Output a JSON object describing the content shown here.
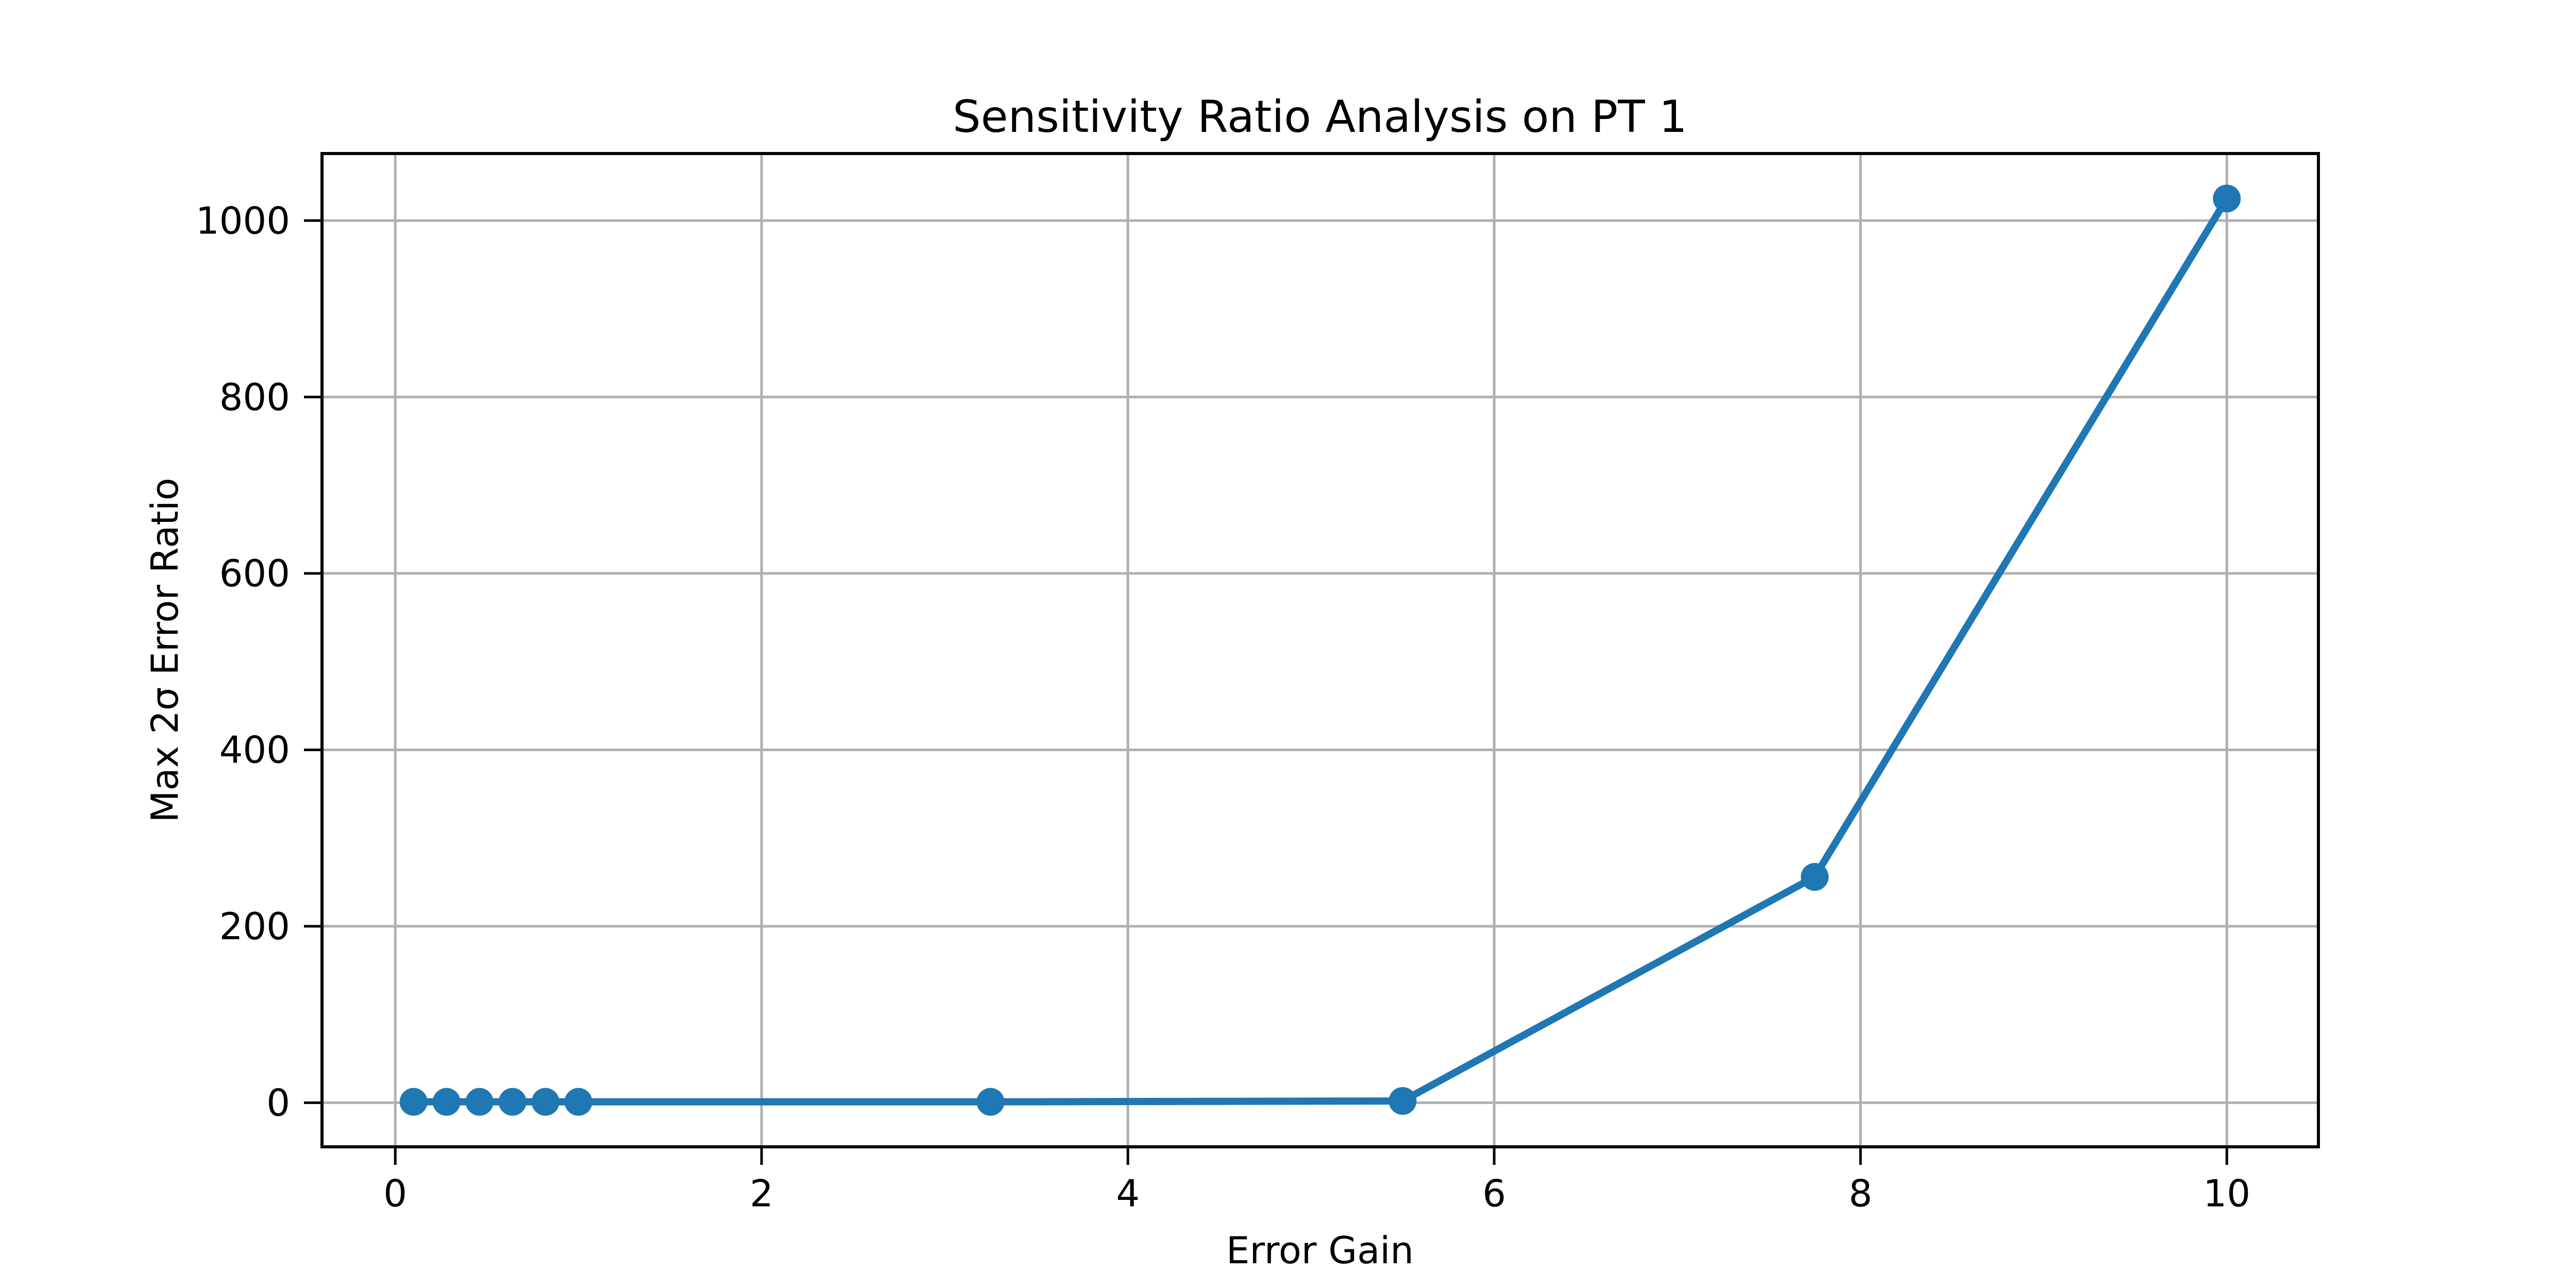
{
  "chart_data": {
    "type": "line",
    "title": "Sensitivity Ratio Analysis on PT 1",
    "xlabel": "Error Gain",
    "ylabel": "Max 2σ Error Ratio",
    "x": [
      0.1,
      0.28,
      0.46,
      0.64,
      0.82,
      1.0,
      3.25,
      5.5,
      7.75,
      10.0
    ],
    "y": [
      1,
      1,
      1,
      1,
      1,
      1,
      1,
      2,
      256,
      1025
    ],
    "xticks": [
      0,
      2,
      4,
      6,
      8,
      10
    ],
    "yticks": [
      0,
      200,
      400,
      600,
      800,
      1000
    ],
    "xlim": [
      -0.4,
      10.5
    ],
    "ylim": [
      -50,
      1076
    ],
    "grid": true,
    "legend": "none",
    "line_color": "#1f77b4",
    "marker": "o",
    "grid_color": "#b0b0b0",
    "spine_color": "#000000",
    "text_color": "#000000",
    "background": "#ffffff"
  }
}
